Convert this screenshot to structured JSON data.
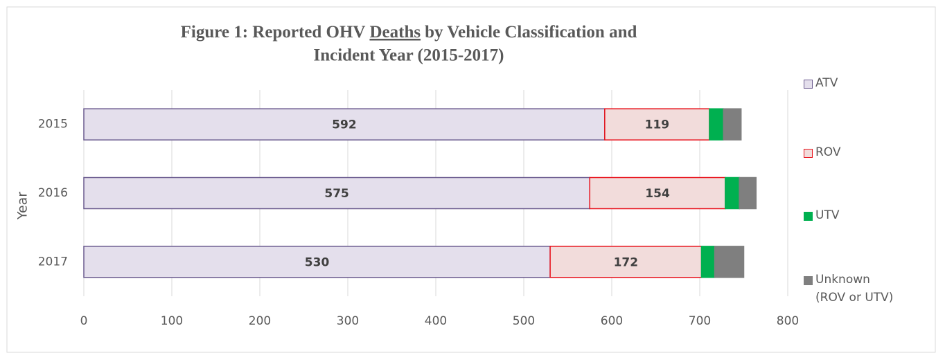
{
  "chart_data": {
    "type": "stacked-barh",
    "title": [
      "Figure 1: Reported OHV",
      "Deaths",
      "by Vehicle Classification and",
      "Incident Year (2015-2017)"
    ],
    "y_label": "Year",
    "categories": [
      "2015",
      "2016",
      "2017"
    ],
    "series": [
      {
        "name": "ATV",
        "color": "#e4dfec",
        "stroke": "#6a5a8e",
        "data_labels": true,
        "values": [
          592,
          575,
          530
        ]
      },
      {
        "name": "ROV",
        "color": "#f2dcdb",
        "stroke": "#e8111b",
        "data_labels": true,
        "values": [
          119,
          154,
          172
        ]
      },
      {
        "name": "UTV",
        "color": "#00b050",
        "stroke": "#00b050",
        "data_labels": false,
        "values": [
          16,
          16,
          15
        ]
      },
      {
        "name": "Unknown (ROV or UTV)",
        "color": "#7f7f7f",
        "stroke": "#7f7f7f",
        "data_labels": false,
        "values": [
          20,
          19,
          33
        ]
      }
    ],
    "xlim": [
      0,
      800
    ],
    "xticks": [
      0,
      100,
      200,
      300,
      400,
      500,
      600,
      700,
      800
    ],
    "grid": true,
    "legend": "right"
  }
}
